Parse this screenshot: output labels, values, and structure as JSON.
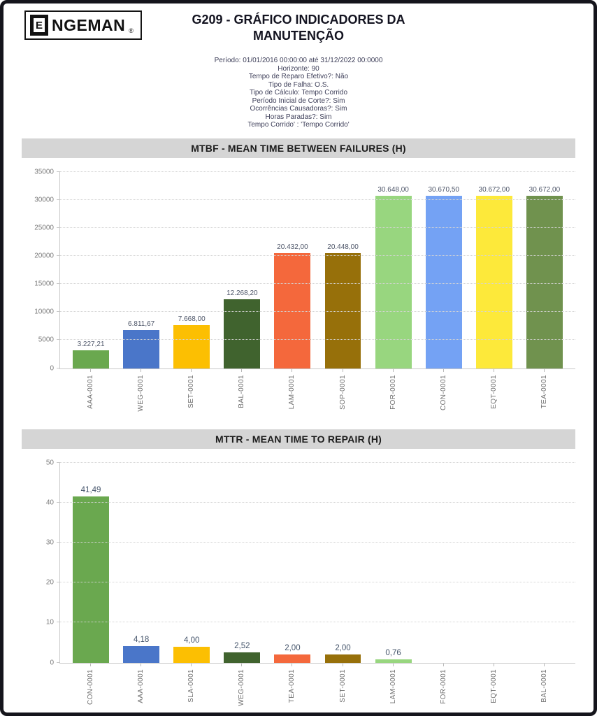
{
  "header": {
    "logo_e": "E",
    "logo_text": "NGEMAN",
    "logo_reg": "®",
    "title_line1": "G209 - GRÁFICO INDICADORES DA",
    "title_line2": "MANUTENÇÃO"
  },
  "parameters": [
    "Período: 01/01/2016 00:00:00 até 31/12/2022 00:0000",
    "Horizonte: 90",
    "Tempo de Reparo Efetivo?: Não",
    "Tipo de Falha: O.S.",
    "Tipo de Cálculo: Tempo Corrido",
    "Período Inicial de Corte?: Sim",
    "Ocorrências Causadoras?: Sim",
    "Horas Paradas?: Sim",
    "Tempo Corrido' : 'Tempo Corrido'"
  ],
  "chart_data": [
    {
      "type": "bar",
      "title": "MTBF - MEAN TIME BETWEEN FAILURES  (H)",
      "categories": [
        "AAA-0001",
        "WEG-0001",
        "SET-0001",
        "BAL-0001",
        "LAM-0001",
        "SOP-0001",
        "FOR-0001",
        "CON-0001",
        "EQT-0001",
        "TEA-0001"
      ],
      "values": [
        3227.21,
        6811.67,
        7668.0,
        12268.2,
        20432.0,
        20448.0,
        30648.0,
        30670.5,
        30672.0,
        30672.0
      ],
      "value_labels": [
        "3.227,21",
        "6.811,67",
        "7.668,00",
        "12.268,20",
        "20.432,00",
        "20.448,00",
        "30.648,00",
        "30.670,50",
        "30.672,00",
        "30.672,00"
      ],
      "bar_colors": [
        "#6aa84f",
        "#4a76c9",
        "#fcbf02",
        "#40632e",
        "#f4683c",
        "#97700a",
        "#98d67f",
        "#74a2f4",
        "#fde93a",
        "#70924e"
      ],
      "xlabel": "",
      "ylabel": "",
      "ylim": [
        0,
        35000
      ],
      "yticks": [
        0,
        5000,
        10000,
        15000,
        20000,
        25000,
        30000,
        35000
      ],
      "grid": "horizontal-dotted",
      "legend": "none"
    },
    {
      "type": "bar",
      "title": "MTTR - MEAN TIME TO REPAIR (H)",
      "categories": [
        "CON-0001",
        "AAA-0001",
        "SLA-0001",
        "WEG-0001",
        "TEA-0001",
        "SET-0001",
        "LAM-0001",
        "FOR-0001",
        "EQT-0001",
        "BAL-0001"
      ],
      "values": [
        41.49,
        4.18,
        4.0,
        2.52,
        2.0,
        2.0,
        0.76,
        0,
        0,
        0
      ],
      "value_labels": [
        "41,49",
        "4,18",
        "4,00",
        "2,52",
        "2,00",
        "2,00",
        "0,76",
        "",
        "",
        ""
      ],
      "bar_colors": [
        "#6aa84f",
        "#4a76c9",
        "#fcbf02",
        "#40632e",
        "#f4683c",
        "#97700a",
        "#98d67f",
        "#98d67f",
        "#98d67f",
        "#98d67f"
      ],
      "xlabel": "",
      "ylabel": "",
      "ylim": [
        0,
        50
      ],
      "yticks": [
        0,
        10,
        20,
        30,
        40,
        50
      ],
      "grid": "horizontal-dotted",
      "legend": "none"
    }
  ]
}
